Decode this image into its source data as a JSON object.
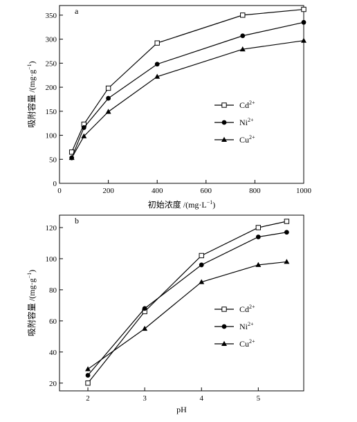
{
  "chart_data": [
    {
      "type": "line",
      "panel_label": "a",
      "xlabel": "初始浓度 /(mg·L",
      "xlabel_sup": "−1",
      "xlabel_end": ")",
      "ylabel": "吸附容量 /(mg·g",
      "ylabel_sup": "−1",
      "ylabel_end": ")",
      "xlim": [
        0,
        1000
      ],
      "ylim": [
        0,
        370
      ],
      "xticks": [
        0,
        200,
        400,
        600,
        800,
        1000
      ],
      "yticks": [
        0,
        50,
        100,
        150,
        200,
        250,
        300,
        350
      ],
      "legend_position": "center-right",
      "series": [
        {
          "name": "Cd",
          "sup": "2+",
          "marker": "square-open",
          "x": [
            50,
            100,
            200,
            400,
            750,
            1000
          ],
          "y": [
            65,
            123,
            198,
            292,
            350,
            362
          ]
        },
        {
          "name": "Ni",
          "sup": "2+",
          "marker": "circle-filled",
          "x": [
            50,
            100,
            200,
            400,
            750,
            1000
          ],
          "y": [
            53,
            116,
            177,
            248,
            307,
            335
          ]
        },
        {
          "name": "Cu",
          "sup": "2+",
          "marker": "triangle-filled",
          "x": [
            50,
            100,
            200,
            400,
            750,
            1000
          ],
          "y": [
            53,
            98,
            149,
            222,
            279,
            297
          ]
        }
      ]
    },
    {
      "type": "line",
      "panel_label": "b",
      "xlabel": "pH",
      "ylabel": "吸附容量 /(mg·g",
      "ylabel_sup": "−1",
      "ylabel_end": ")",
      "xlim": [
        1.5,
        5.8
      ],
      "ylim": [
        15,
        128
      ],
      "xticks": [
        2,
        3,
        4,
        5
      ],
      "yticks": [
        20,
        40,
        60,
        80,
        100,
        120
      ],
      "legend_position": "center-right",
      "series": [
        {
          "name": "Cd",
          "sup": "2+",
          "marker": "square-open",
          "x": [
            2,
            3,
            4,
            5,
            5.5
          ],
          "y": [
            20,
            66,
            102,
            120,
            124
          ]
        },
        {
          "name": "Ni",
          "sup": "2+",
          "marker": "circle-filled",
          "x": [
            2,
            3,
            4,
            5,
            5.5
          ],
          "y": [
            25,
            68,
            96,
            114,
            117
          ]
        },
        {
          "name": "Cu",
          "sup": "2+",
          "marker": "triangle-filled",
          "x": [
            2,
            3,
            4,
            5,
            5.5
          ],
          "y": [
            29,
            55,
            85,
            96,
            98
          ]
        }
      ]
    }
  ]
}
